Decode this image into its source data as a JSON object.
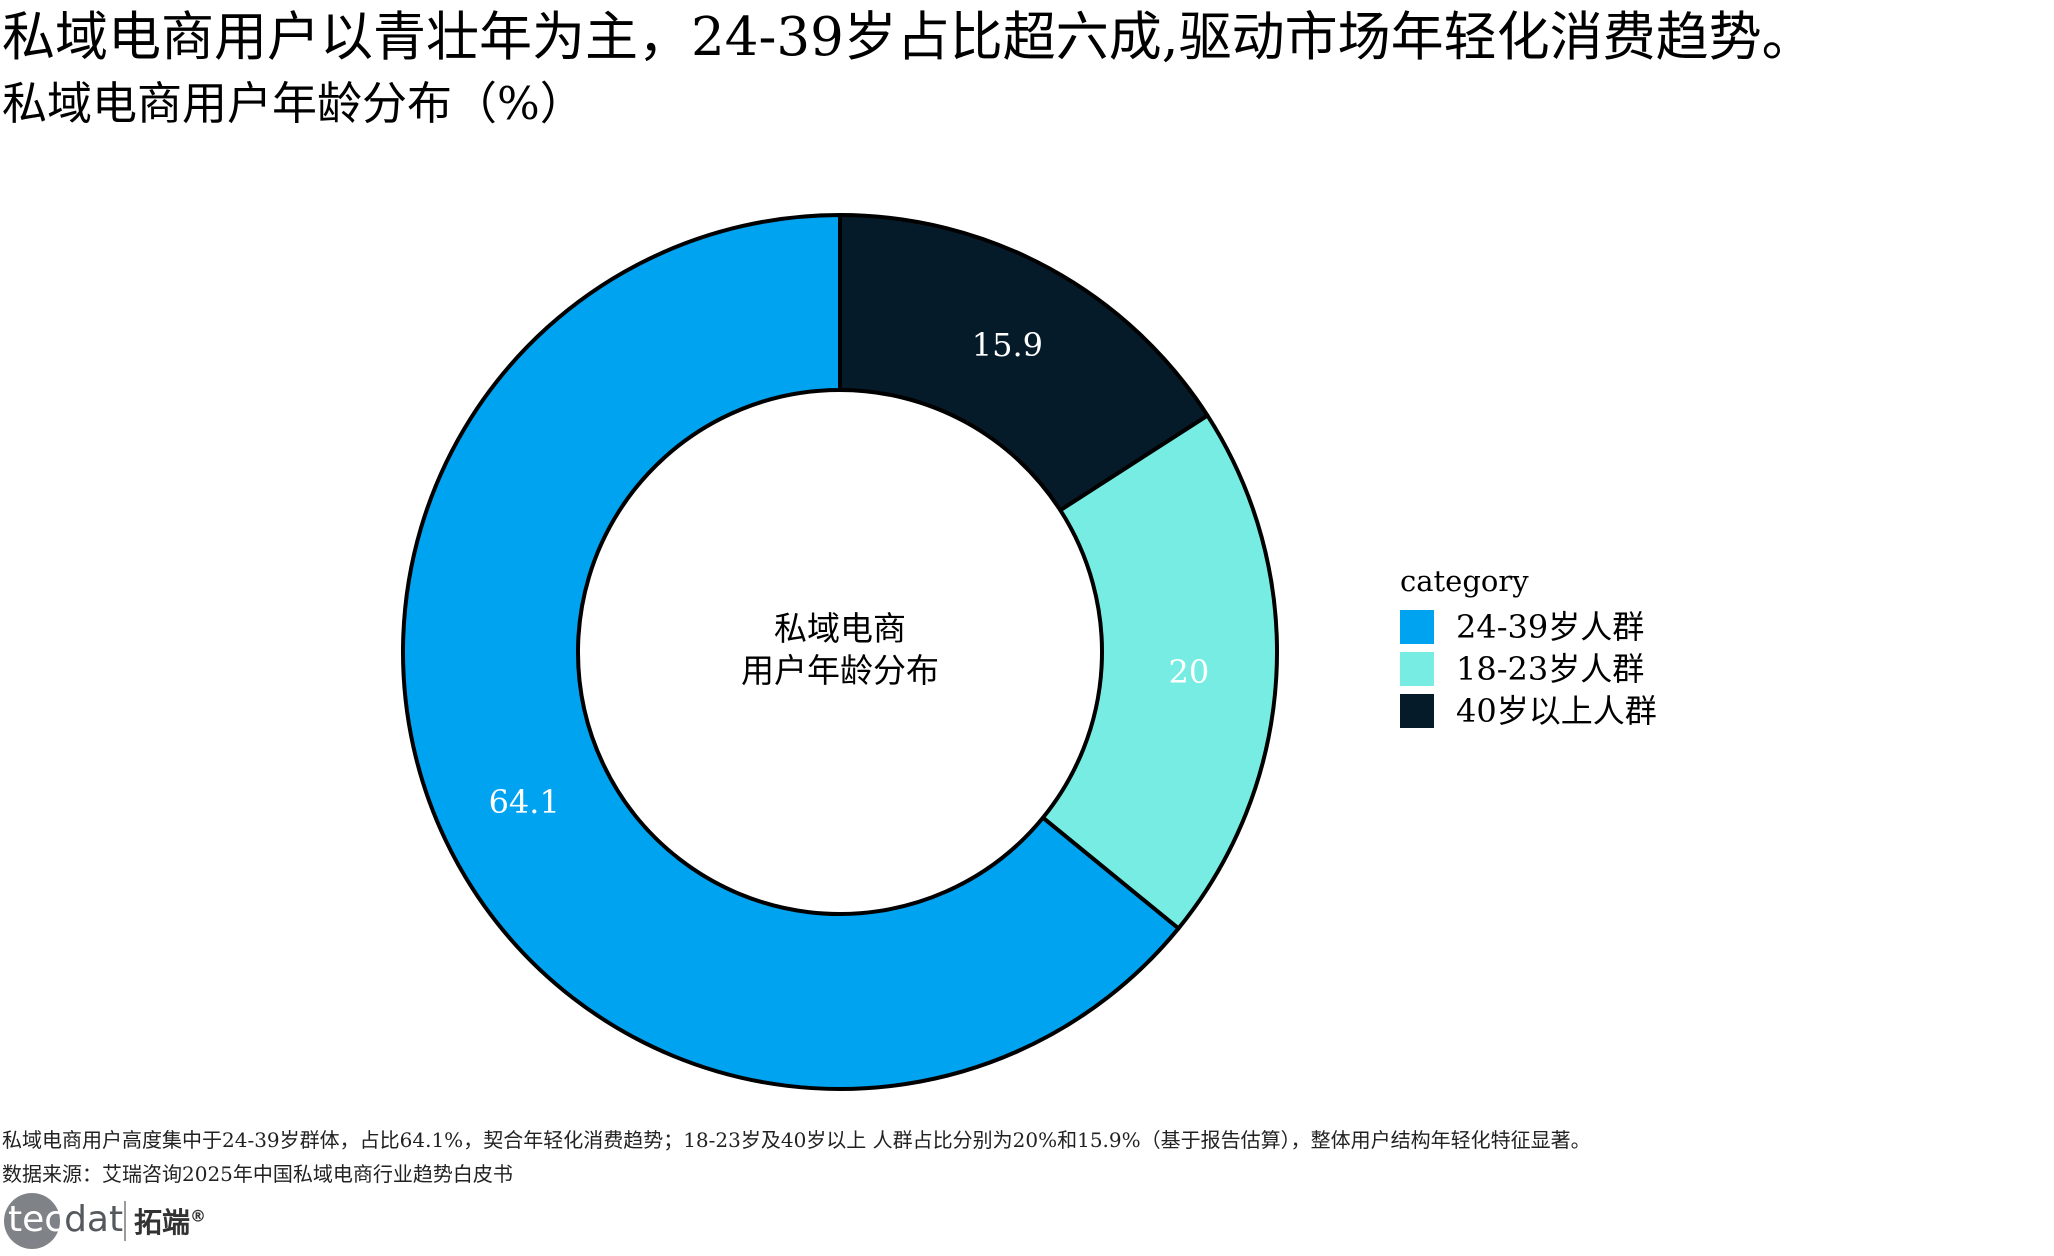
{
  "headline": "私域电商用户以青壮年为主，24-39岁占比超六成,驱动市场年轻化消费趋势。",
  "subtitle": "私域电商用户年龄分布（%）",
  "center_label": [
    "私域电商",
    "用户年龄分布"
  ],
  "note": "私域电商用户高度集中于24-39岁群体，占比64.1%，契合年轻化消费趋势；18-23岁及40岁以上 人群占比分别为20%和15.9%（基于报告估算），整体用户结构年轻化特征显著。",
  "source": "数据来源：艾瑞咨询2025年中国私域电商行业趋势白皮书",
  "logo": {
    "text_a": "tec",
    "text_b": "dat",
    "cn": "拓端",
    "reg": "®"
  },
  "legend_title": "category",
  "colors": {
    "seg_24_39": "#00a3f0",
    "seg_18_23": "#77ece3",
    "seg_40_plus": "#061b2a",
    "outline": "#000000"
  },
  "chart_data": {
    "type": "pie",
    "variant": "donut",
    "title": "私域电商用户年龄分布（%）",
    "legend_position": "right",
    "slices": [
      {
        "label": "40岁以上人群",
        "value": 15.9,
        "value_label": "15.9",
        "color": "#061b2a",
        "label_color": "#ffffff"
      },
      {
        "label": "18-23岁人群",
        "value": 20,
        "value_label": "20",
        "color": "#77ece3",
        "label_color": "#ffffff"
      },
      {
        "label": "24-39岁人群",
        "value": 64.1,
        "value_label": "64.1",
        "color": "#00a3f0",
        "label_color": "#ffffff"
      }
    ],
    "legend_order": [
      "24-39岁人群",
      "18-23岁人群",
      "40岁以上人群"
    ]
  }
}
